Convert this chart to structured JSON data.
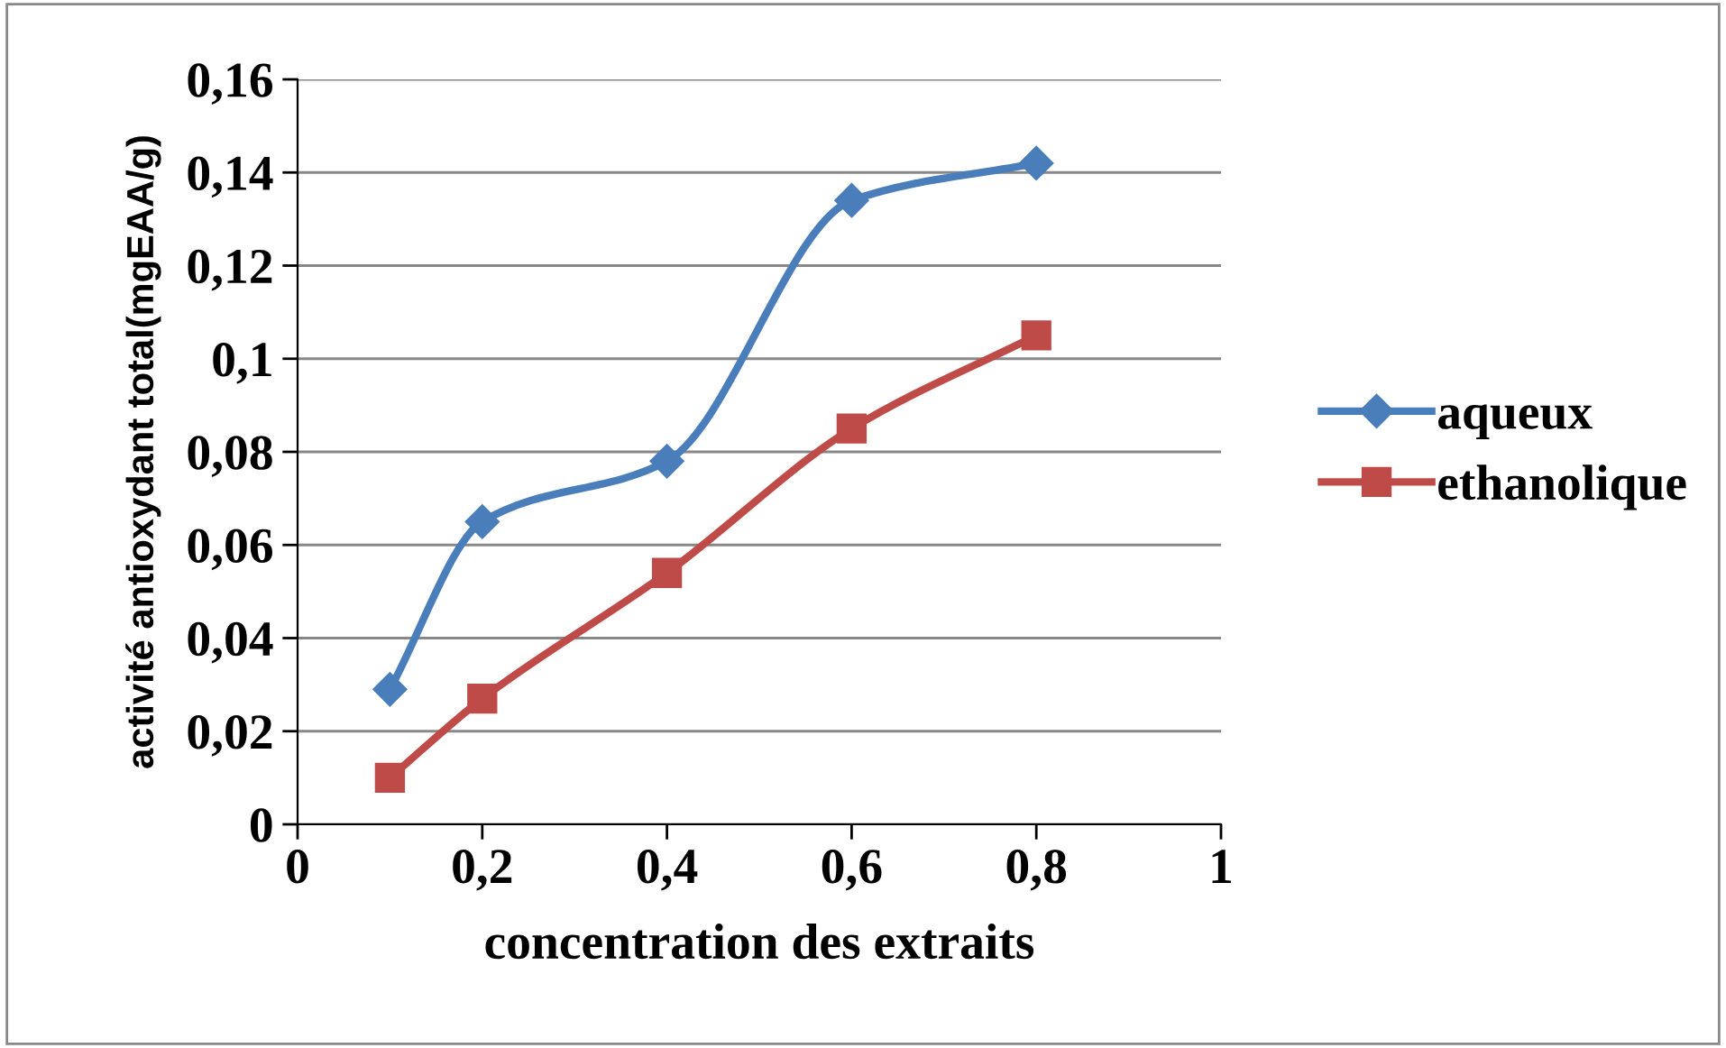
{
  "chart_data": {
    "type": "line",
    "xlabel": "concentration des extraits",
    "ylabel": "activité antioxydant total(mgEAA/g)",
    "series": [
      {
        "name": "aqueux",
        "color": "#4a7ebb",
        "marker": "diamond",
        "x": [
          0.1,
          0.2,
          0.4,
          0.6,
          0.8
        ],
        "values": [
          0.029,
          0.065,
          0.078,
          0.134,
          0.142
        ]
      },
      {
        "name": "ethanolique",
        "color": "#be4b48",
        "marker": "square",
        "x": [
          0.1,
          0.2,
          0.4,
          0.6,
          0.8
        ],
        "values": [
          0.01,
          0.027,
          0.054,
          0.085,
          0.105
        ]
      }
    ],
    "xlim": [
      0,
      1
    ],
    "xticks": [
      0,
      {
        "value": 0.2,
        "label": "0,2"
      },
      {
        "value": 0.4,
        "label": "0,4"
      },
      {
        "value": 0.6,
        "label": "0,6"
      },
      {
        "value": 0.8,
        "label": "0,8"
      },
      1
    ],
    "ylim": [
      0,
      0.16
    ],
    "yticks": [
      0,
      {
        "value": 0.02,
        "label": "0,02"
      },
      {
        "value": 0.04,
        "label": "0,04"
      },
      {
        "value": 0.06,
        "label": "0,06"
      },
      {
        "value": 0.08,
        "label": "0,08"
      },
      {
        "value": 0.1,
        "label": "0,1"
      },
      {
        "value": 0.12,
        "label": "0,12"
      },
      {
        "value": 0.14,
        "label": "0,14"
      },
      {
        "value": 0.16,
        "label": "0,16"
      }
    ],
    "grid": "y",
    "legend": "right",
    "line_style": "solid"
  }
}
